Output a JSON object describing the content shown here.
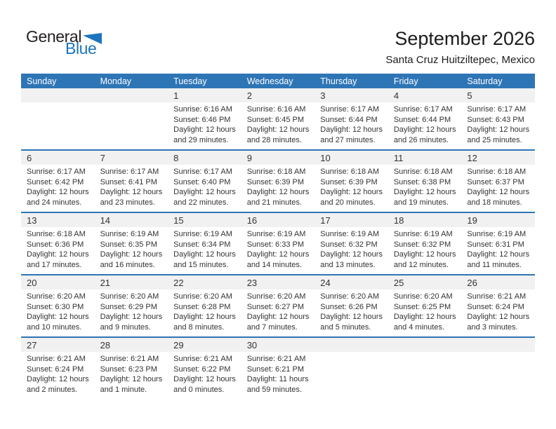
{
  "logo": {
    "text_top": "General",
    "text_bottom": "Blue"
  },
  "title": "September 2026",
  "subtitle": "Santa Cruz Huitziltepec, Mexico",
  "colors": {
    "header_blue": "#2e75b6",
    "divider_blue": "#2e75b6",
    "number_strip_gray": "#f1f1f1",
    "logo_blue": "#1c75bc",
    "text_dark": "#333333"
  },
  "calendar": {
    "day_headers": [
      "Sunday",
      "Monday",
      "Tuesday",
      "Wednesday",
      "Thursday",
      "Friday",
      "Saturday"
    ],
    "weeks": [
      {
        "days": [
          null,
          null,
          {
            "number": "1",
            "sunrise": "Sunrise: 6:16 AM",
            "sunset": "Sunset: 6:46 PM",
            "daylight_line1": "Daylight: 12 hours",
            "daylight_line2": "and 29 minutes."
          },
          {
            "number": "2",
            "sunrise": "Sunrise: 6:16 AM",
            "sunset": "Sunset: 6:45 PM",
            "daylight_line1": "Daylight: 12 hours",
            "daylight_line2": "and 28 minutes."
          },
          {
            "number": "3",
            "sunrise": "Sunrise: 6:17 AM",
            "sunset": "Sunset: 6:44 PM",
            "daylight_line1": "Daylight: 12 hours",
            "daylight_line2": "and 27 minutes."
          },
          {
            "number": "4",
            "sunrise": "Sunrise: 6:17 AM",
            "sunset": "Sunset: 6:44 PM",
            "daylight_line1": "Daylight: 12 hours",
            "daylight_line2": "and 26 minutes."
          },
          {
            "number": "5",
            "sunrise": "Sunrise: 6:17 AM",
            "sunset": "Sunset: 6:43 PM",
            "daylight_line1": "Daylight: 12 hours",
            "daylight_line2": "and 25 minutes."
          }
        ]
      },
      {
        "days": [
          {
            "number": "6",
            "sunrise": "Sunrise: 6:17 AM",
            "sunset": "Sunset: 6:42 PM",
            "daylight_line1": "Daylight: 12 hours",
            "daylight_line2": "and 24 minutes."
          },
          {
            "number": "7",
            "sunrise": "Sunrise: 6:17 AM",
            "sunset": "Sunset: 6:41 PM",
            "daylight_line1": "Daylight: 12 hours",
            "daylight_line2": "and 23 minutes."
          },
          {
            "number": "8",
            "sunrise": "Sunrise: 6:17 AM",
            "sunset": "Sunset: 6:40 PM",
            "daylight_line1": "Daylight: 12 hours",
            "daylight_line2": "and 22 minutes."
          },
          {
            "number": "9",
            "sunrise": "Sunrise: 6:18 AM",
            "sunset": "Sunset: 6:39 PM",
            "daylight_line1": "Daylight: 12 hours",
            "daylight_line2": "and 21 minutes."
          },
          {
            "number": "10",
            "sunrise": "Sunrise: 6:18 AM",
            "sunset": "Sunset: 6:39 PM",
            "daylight_line1": "Daylight: 12 hours",
            "daylight_line2": "and 20 minutes."
          },
          {
            "number": "11",
            "sunrise": "Sunrise: 6:18 AM",
            "sunset": "Sunset: 6:38 PM",
            "daylight_line1": "Daylight: 12 hours",
            "daylight_line2": "and 19 minutes."
          },
          {
            "number": "12",
            "sunrise": "Sunrise: 6:18 AM",
            "sunset": "Sunset: 6:37 PM",
            "daylight_line1": "Daylight: 12 hours",
            "daylight_line2": "and 18 minutes."
          }
        ]
      },
      {
        "days": [
          {
            "number": "13",
            "sunrise": "Sunrise: 6:18 AM",
            "sunset": "Sunset: 6:36 PM",
            "daylight_line1": "Daylight: 12 hours",
            "daylight_line2": "and 17 minutes."
          },
          {
            "number": "14",
            "sunrise": "Sunrise: 6:19 AM",
            "sunset": "Sunset: 6:35 PM",
            "daylight_line1": "Daylight: 12 hours",
            "daylight_line2": "and 16 minutes."
          },
          {
            "number": "15",
            "sunrise": "Sunrise: 6:19 AM",
            "sunset": "Sunset: 6:34 PM",
            "daylight_line1": "Daylight: 12 hours",
            "daylight_line2": "and 15 minutes."
          },
          {
            "number": "16",
            "sunrise": "Sunrise: 6:19 AM",
            "sunset": "Sunset: 6:33 PM",
            "daylight_line1": "Daylight: 12 hours",
            "daylight_line2": "and 14 minutes."
          },
          {
            "number": "17",
            "sunrise": "Sunrise: 6:19 AM",
            "sunset": "Sunset: 6:32 PM",
            "daylight_line1": "Daylight: 12 hours",
            "daylight_line2": "and 13 minutes."
          },
          {
            "number": "18",
            "sunrise": "Sunrise: 6:19 AM",
            "sunset": "Sunset: 6:32 PM",
            "daylight_line1": "Daylight: 12 hours",
            "daylight_line2": "and 12 minutes."
          },
          {
            "number": "19",
            "sunrise": "Sunrise: 6:19 AM",
            "sunset": "Sunset: 6:31 PM",
            "daylight_line1": "Daylight: 12 hours",
            "daylight_line2": "and 11 minutes."
          }
        ]
      },
      {
        "days": [
          {
            "number": "20",
            "sunrise": "Sunrise: 6:20 AM",
            "sunset": "Sunset: 6:30 PM",
            "daylight_line1": "Daylight: 12 hours",
            "daylight_line2": "and 10 minutes."
          },
          {
            "number": "21",
            "sunrise": "Sunrise: 6:20 AM",
            "sunset": "Sunset: 6:29 PM",
            "daylight_line1": "Daylight: 12 hours",
            "daylight_line2": "and 9 minutes."
          },
          {
            "number": "22",
            "sunrise": "Sunrise: 6:20 AM",
            "sunset": "Sunset: 6:28 PM",
            "daylight_line1": "Daylight: 12 hours",
            "daylight_line2": "and 8 minutes."
          },
          {
            "number": "23",
            "sunrise": "Sunrise: 6:20 AM",
            "sunset": "Sunset: 6:27 PM",
            "daylight_line1": "Daylight: 12 hours",
            "daylight_line2": "and 7 minutes."
          },
          {
            "number": "24",
            "sunrise": "Sunrise: 6:20 AM",
            "sunset": "Sunset: 6:26 PM",
            "daylight_line1": "Daylight: 12 hours",
            "daylight_line2": "and 5 minutes."
          },
          {
            "number": "25",
            "sunrise": "Sunrise: 6:20 AM",
            "sunset": "Sunset: 6:25 PM",
            "daylight_line1": "Daylight: 12 hours",
            "daylight_line2": "and 4 minutes."
          },
          {
            "number": "26",
            "sunrise": "Sunrise: 6:21 AM",
            "sunset": "Sunset: 6:24 PM",
            "daylight_line1": "Daylight: 12 hours",
            "daylight_line2": "and 3 minutes."
          }
        ]
      },
      {
        "days": [
          {
            "number": "27",
            "sunrise": "Sunrise: 6:21 AM",
            "sunset": "Sunset: 6:24 PM",
            "daylight_line1": "Daylight: 12 hours",
            "daylight_line2": "and 2 minutes."
          },
          {
            "number": "28",
            "sunrise": "Sunrise: 6:21 AM",
            "sunset": "Sunset: 6:23 PM",
            "daylight_line1": "Daylight: 12 hours",
            "daylight_line2": "and 1 minute."
          },
          {
            "number": "29",
            "sunrise": "Sunrise: 6:21 AM",
            "sunset": "Sunset: 6:22 PM",
            "daylight_line1": "Daylight: 12 hours",
            "daylight_line2": "and 0 minutes."
          },
          {
            "number": "30",
            "sunrise": "Sunrise: 6:21 AM",
            "sunset": "Sunset: 6:21 PM",
            "daylight_line1": "Daylight: 11 hours",
            "daylight_line2": "and 59 minutes."
          },
          null,
          null,
          null
        ]
      }
    ]
  }
}
